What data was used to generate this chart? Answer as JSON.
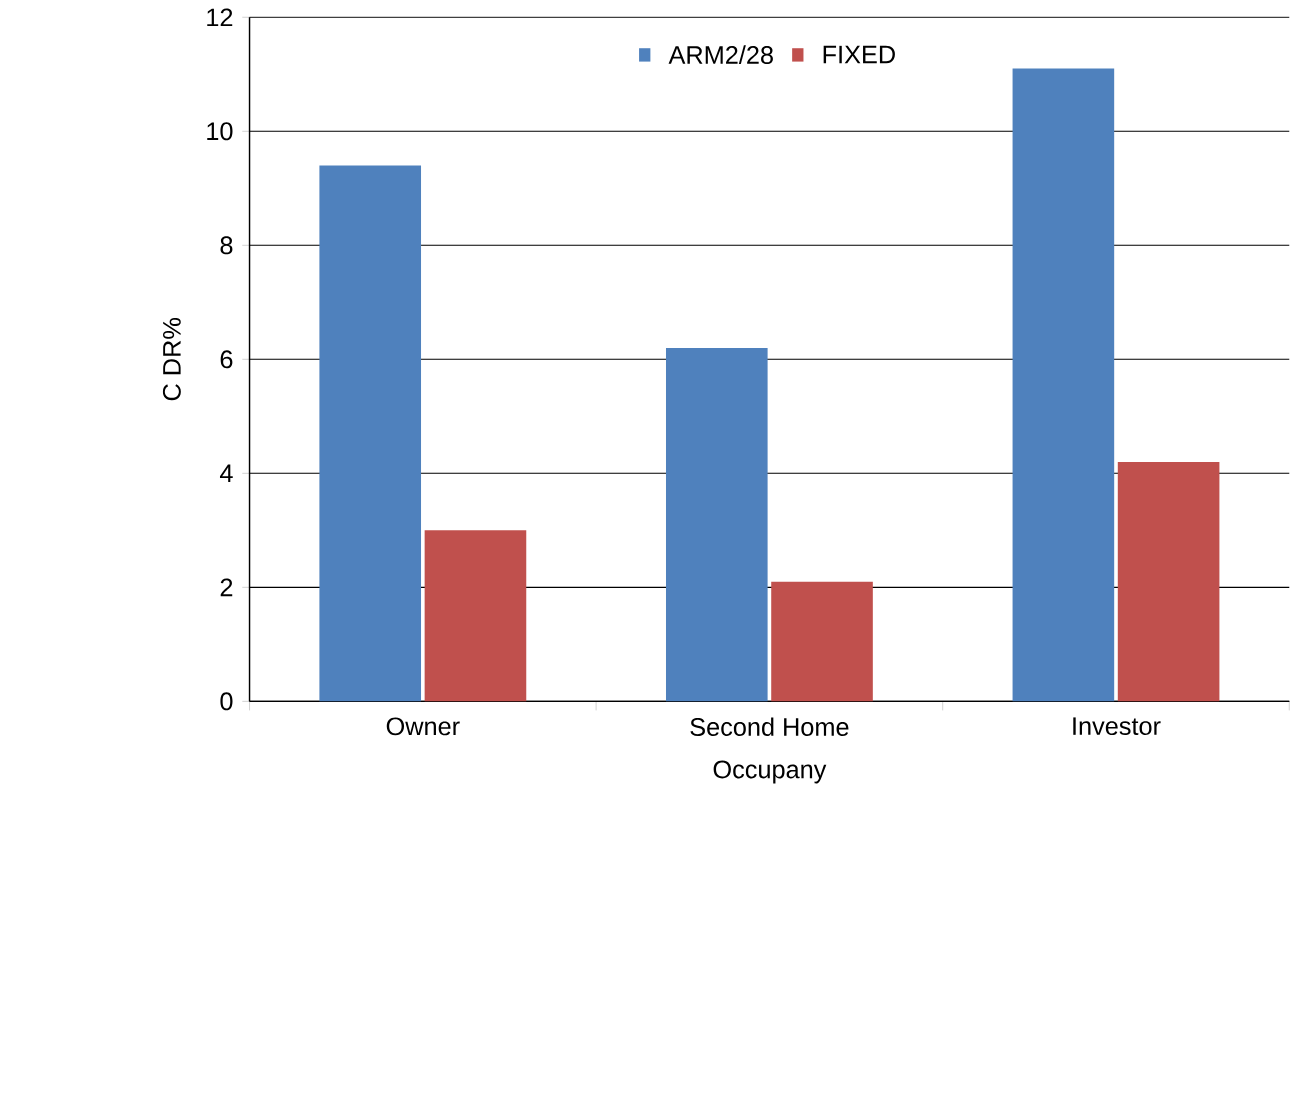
{
  "chart_data": {
    "type": "bar",
    "xlabel": "Occupany",
    "ylabel": "C DR%",
    "categories": [
      "Owner",
      "Second Home",
      "Investor"
    ],
    "series": [
      {
        "name": "ARM2/28",
        "color": "#4f81bd",
        "values": [
          9.4,
          6.2,
          11.1
        ]
      },
      {
        "name": "FIXED",
        "color": "#c0504d",
        "values": [
          3.0,
          2.1,
          4.2
        ]
      }
    ],
    "ylim": [
      0,
      12
    ],
    "yticks": [
      0,
      2,
      4,
      6,
      8,
      10,
      12
    ],
    "grid": "y",
    "legend": "top"
  }
}
